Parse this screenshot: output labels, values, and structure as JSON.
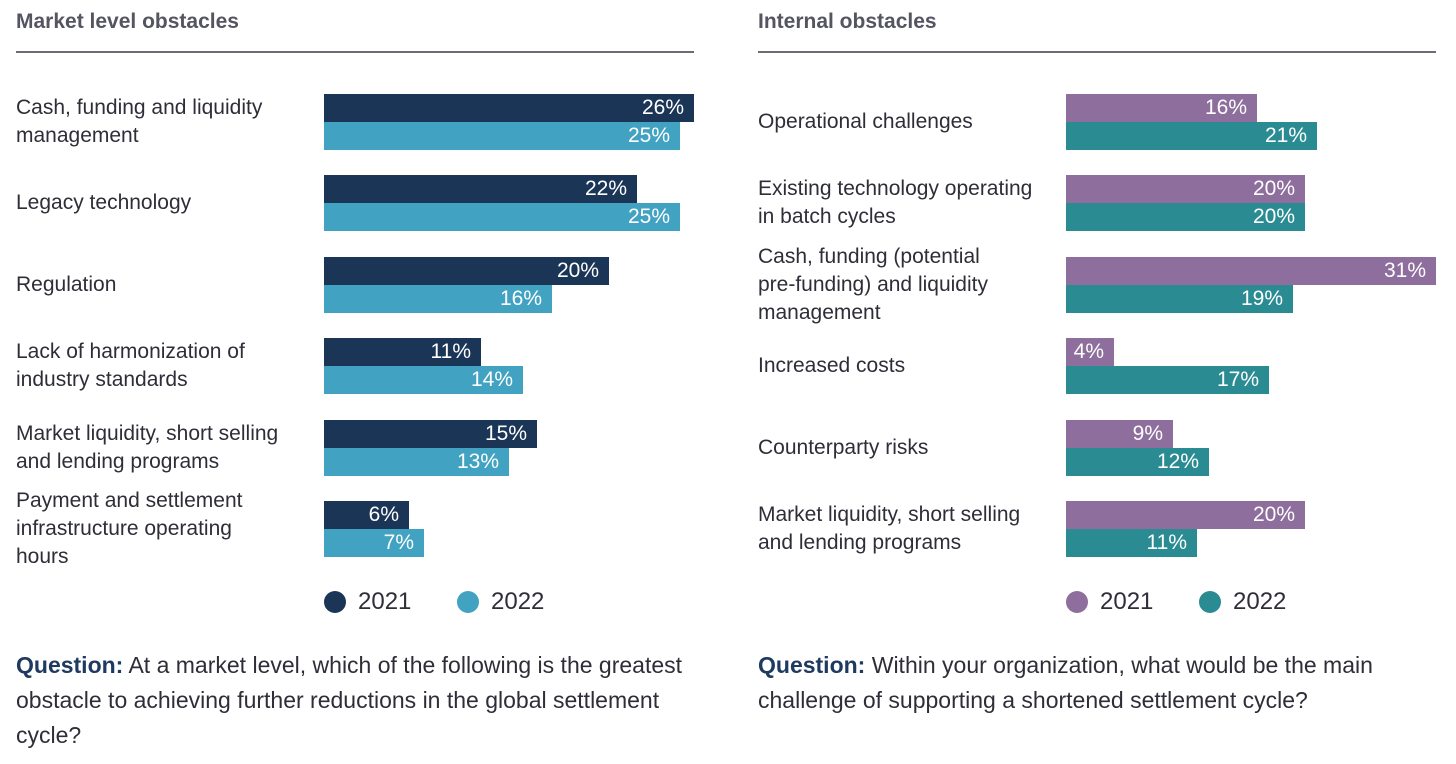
{
  "chart_data": [
    {
      "type": "bar",
      "orientation": "horizontal",
      "title": "Market level obstacles",
      "categories": [
        "Cash, funding and liquidity\nmanagement",
        "Legacy technology",
        "Regulation",
        "Lack of harmonization of\nindustry standards",
        "Market liquidity, short selling\nand lending programs",
        "Payment and settlement\ninfrastructure operating\nhours"
      ],
      "series": [
        {
          "name": "2021",
          "values": [
            26,
            22,
            20,
            11,
            15,
            6
          ],
          "labels": [
            "26%",
            "22%",
            "20%",
            "11%",
            "15%",
            "6%"
          ],
          "color": "#1b3557"
        },
        {
          "name": "2022",
          "values": [
            25,
            25,
            16,
            14,
            13,
            7
          ],
          "labels": [
            "25%",
            "25%",
            "16%",
            "14%",
            "13%",
            "7%"
          ],
          "color": "#41a2c1"
        }
      ],
      "xlim": [
        0,
        26
      ],
      "grid": false,
      "legend": "bottom",
      "question": {
        "prefix": "Question:",
        "text": "At a market level, which of the following is the greatest obstacle to achieving further reductions in the global settlement cycle?"
      }
    },
    {
      "type": "bar",
      "orientation": "horizontal",
      "title": "Internal obstacles",
      "categories": [
        "Operational challenges",
        "Existing technology operating\nin batch cycles",
        "Cash, funding (potential\npre-funding) and liquidity\nmanagement",
        "Increased costs",
        "Counterparty risks",
        "Market liquidity, short selling\nand lending programs"
      ],
      "series": [
        {
          "name": "2021",
          "values": [
            16,
            20,
            31,
            4,
            9,
            20
          ],
          "labels": [
            "16%",
            "20%",
            "31%",
            "4%",
            "9%",
            "20%"
          ],
          "color": "#8e6e9c"
        },
        {
          "name": "2022",
          "values": [
            21,
            20,
            19,
            17,
            12,
            11
          ],
          "labels": [
            "21%",
            "20%",
            "19%",
            "17%",
            "12%",
            "11%"
          ],
          "color": "#2a8b92"
        }
      ],
      "xlim": [
        0,
        31
      ],
      "grid": false,
      "legend": "bottom",
      "question": {
        "prefix": "Question:",
        "text": "Within your organization, what would be the main challenge of supporting a shortened settlement cycle?"
      }
    }
  ]
}
